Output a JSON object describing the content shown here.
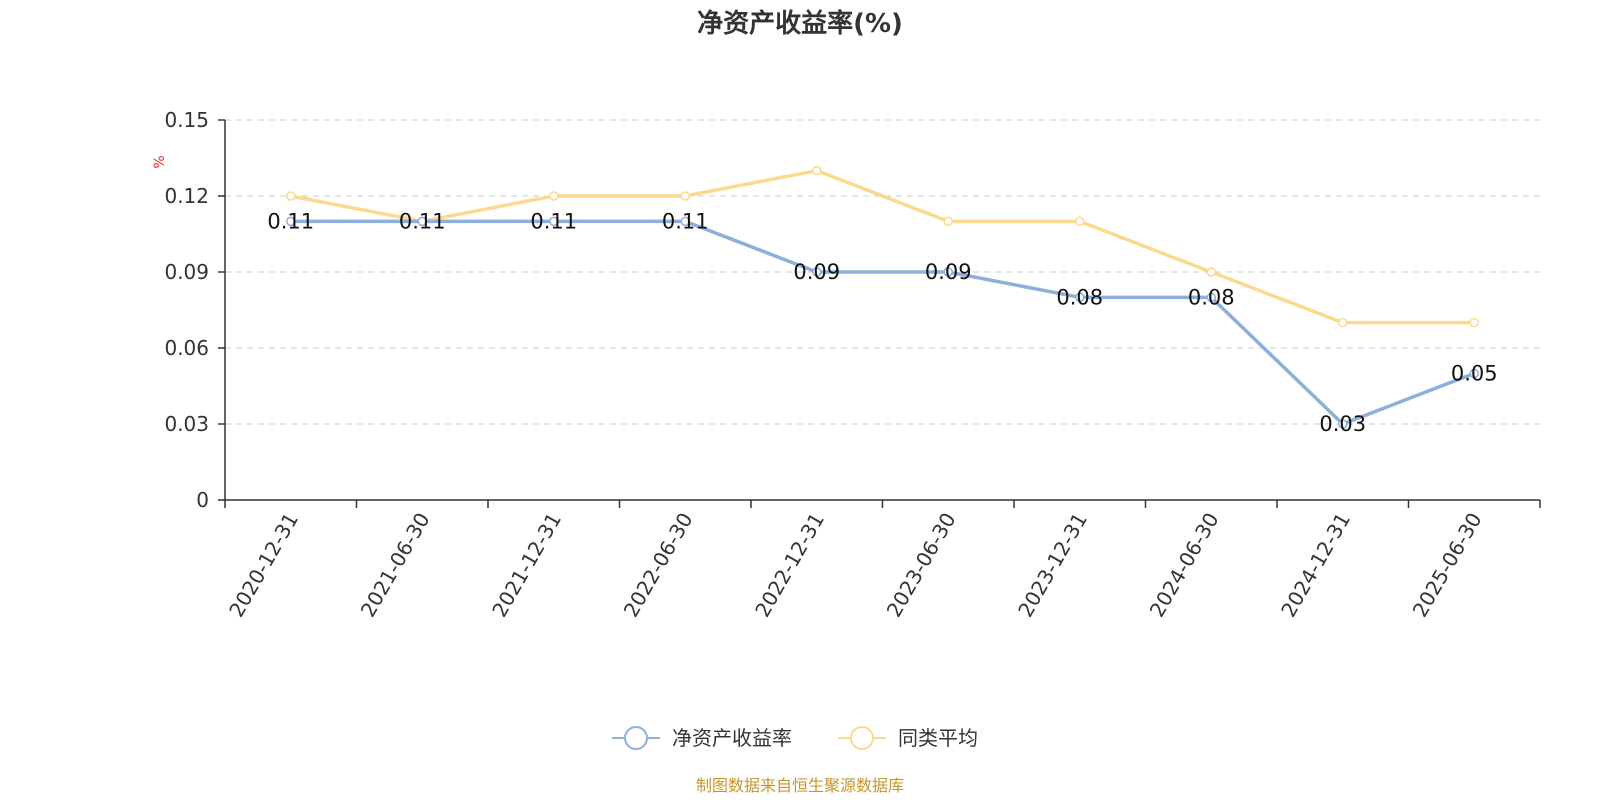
{
  "chart_data": {
    "type": "line",
    "title": "净资产收益率(%)",
    "ylabel": "%",
    "xlabel": "",
    "categories": [
      "2020-12-31",
      "2021-06-30",
      "2021-12-31",
      "2022-06-30",
      "2022-12-31",
      "2023-06-30",
      "2023-12-31",
      "2024-06-30",
      "2024-12-31",
      "2025-06-30"
    ],
    "ylim": [
      0,
      0.15
    ],
    "yticks": [
      "0",
      "0.03",
      "0.06",
      "0.09",
      "0.12",
      "0.15"
    ],
    "grid": true,
    "legend_position": "bottom",
    "series": [
      {
        "name": "净资产收益率",
        "color": "#8eaedb",
        "show_labels": true,
        "values": [
          0.11,
          0.11,
          0.11,
          0.11,
          0.09,
          0.09,
          0.08,
          0.08,
          0.03,
          0.05
        ],
        "labels": [
          "0.11",
          "0.11",
          "0.11",
          "0.11",
          "0.09",
          "0.09",
          "0.08",
          "0.08",
          "0.03",
          "0.05"
        ]
      },
      {
        "name": "同类平均",
        "color": "#fbd98e",
        "show_labels": false,
        "values": [
          0.12,
          0.11,
          0.12,
          0.12,
          0.13,
          0.11,
          0.11,
          0.09,
          0.07,
          0.07
        ]
      }
    ]
  },
  "source_note": "制图数据来自恒生聚源数据库"
}
